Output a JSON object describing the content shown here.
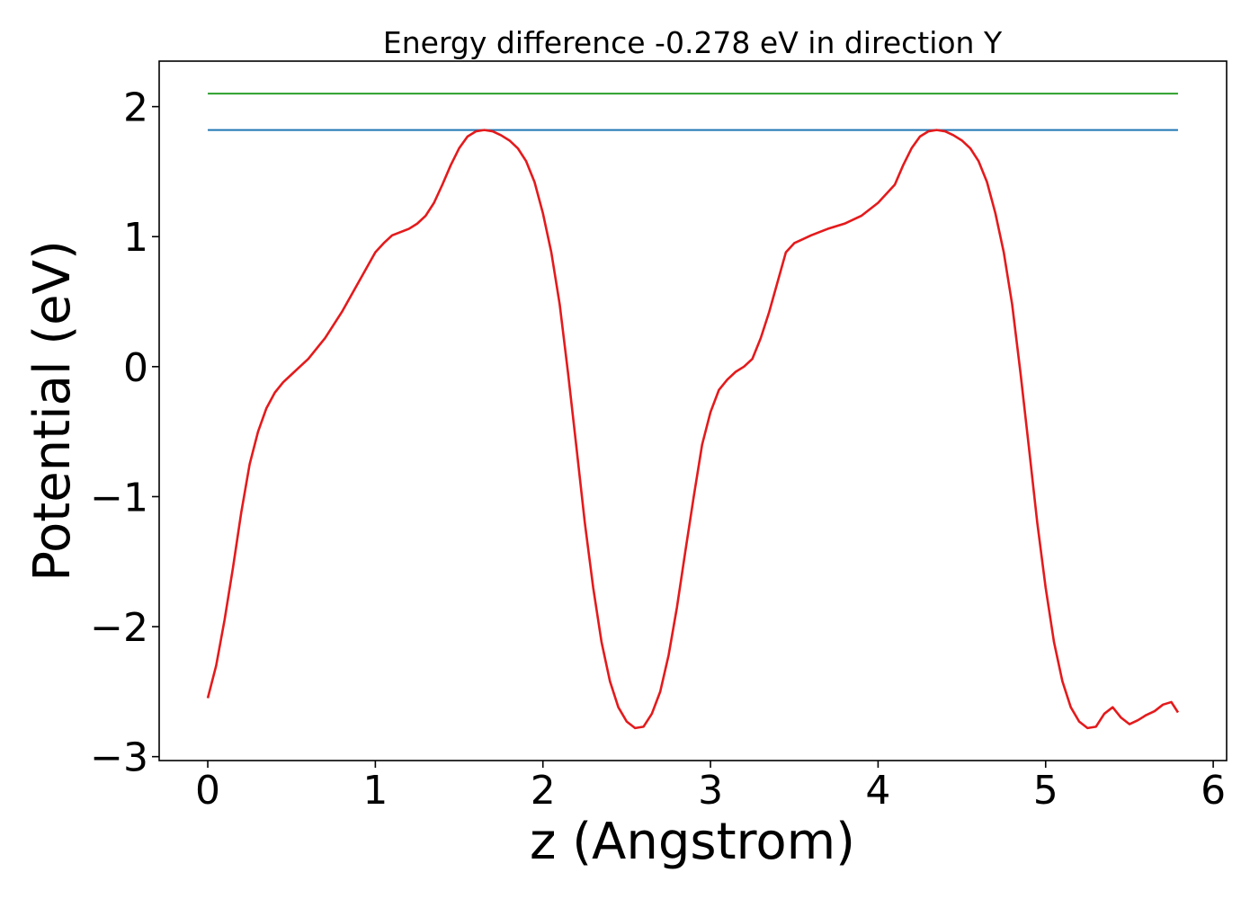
{
  "chart_data": {
    "type": "line",
    "title": "Energy difference -0.278 eV in direction Y",
    "xlabel": "z (Angstrom)",
    "ylabel": "Potential (eV)",
    "xlim": [
      -0.29,
      6.08
    ],
    "ylim": [
      -3.03,
      2.35
    ],
    "xticks": [
      0,
      1,
      2,
      3,
      4,
      5,
      6
    ],
    "yticks": [
      -3,
      -2,
      -1,
      0,
      1,
      2
    ],
    "ytick_labels": [
      "−3",
      "−2",
      "−1",
      "0",
      "1",
      "2"
    ],
    "xtick_labels": [
      "0",
      "1",
      "2",
      "3",
      "4",
      "5",
      "6"
    ],
    "grid": false,
    "legend": "none",
    "series": [
      {
        "color": "#2ca02c",
        "x": [
          0.0,
          5.79
        ],
        "y": [
          2.1,
          2.1
        ]
      },
      {
        "color": "#1f77b4",
        "x": [
          0.0,
          5.79
        ],
        "y": [
          1.82,
          1.82
        ]
      },
      {
        "color": "#e41a1c",
        "x": [
          0.0,
          0.05,
          0.1,
          0.15,
          0.2,
          0.25,
          0.3,
          0.35,
          0.4,
          0.45,
          0.5,
          0.55,
          0.6,
          0.7,
          0.8,
          0.9,
          1.0,
          1.05,
          1.1,
          1.2,
          1.25,
          1.3,
          1.35,
          1.4,
          1.45,
          1.5,
          1.55,
          1.6,
          1.65,
          1.7,
          1.75,
          1.8,
          1.85,
          1.9,
          1.95,
          2.0,
          2.05,
          2.1,
          2.15,
          2.2,
          2.25,
          2.3,
          2.35,
          2.4,
          2.45,
          2.5,
          2.55,
          2.6,
          2.65,
          2.7,
          2.75,
          2.8,
          2.85,
          2.9,
          2.95,
          3.0,
          3.05,
          3.1,
          3.15,
          3.2,
          3.25,
          3.3,
          3.35,
          3.4,
          3.45,
          3.5,
          3.6,
          3.7,
          3.8,
          3.9,
          4.0,
          4.1,
          4.15,
          4.2,
          4.25,
          4.3,
          4.35,
          4.4,
          4.45,
          4.5,
          4.55,
          4.6,
          4.65,
          4.7,
          4.75,
          4.8,
          4.85,
          4.9,
          4.95,
          5.0,
          5.05,
          5.1,
          5.15,
          5.2,
          5.25,
          5.3,
          5.35,
          5.4,
          5.45,
          5.5,
          5.55,
          5.6,
          5.65,
          5.7,
          5.75,
          5.79
        ],
        "y": [
          -2.55,
          -2.3,
          -1.95,
          -1.55,
          -1.12,
          -0.75,
          -0.5,
          -0.32,
          -0.2,
          -0.12,
          -0.06,
          0.0,
          0.06,
          0.22,
          0.42,
          0.65,
          0.88,
          0.95,
          1.01,
          1.06,
          1.1,
          1.16,
          1.26,
          1.4,
          1.55,
          1.68,
          1.77,
          1.81,
          1.82,
          1.81,
          1.78,
          1.74,
          1.68,
          1.58,
          1.42,
          1.18,
          0.88,
          0.48,
          -0.05,
          -0.62,
          -1.2,
          -1.7,
          -2.12,
          -2.42,
          -2.62,
          -2.73,
          -2.78,
          -2.77,
          -2.67,
          -2.5,
          -2.22,
          -1.85,
          -1.42,
          -1.0,
          -0.6,
          -0.35,
          -0.18,
          -0.1,
          -0.04,
          0.0,
          0.06,
          0.22,
          0.42,
          0.65,
          0.88,
          0.95,
          1.01,
          1.06,
          1.1,
          1.16,
          1.26,
          1.4,
          1.55,
          1.68,
          1.77,
          1.81,
          1.82,
          1.81,
          1.78,
          1.74,
          1.68,
          1.58,
          1.42,
          1.18,
          0.88,
          0.48,
          -0.05,
          -0.62,
          -1.2,
          -1.7,
          -2.12,
          -2.42,
          -2.62,
          -2.73,
          -2.78,
          -2.77,
          -2.67,
          -2.62,
          -2.7,
          -2.75,
          -2.72,
          -2.68,
          -2.65,
          -2.6,
          -2.58,
          -2.66
        ]
      }
    ]
  }
}
